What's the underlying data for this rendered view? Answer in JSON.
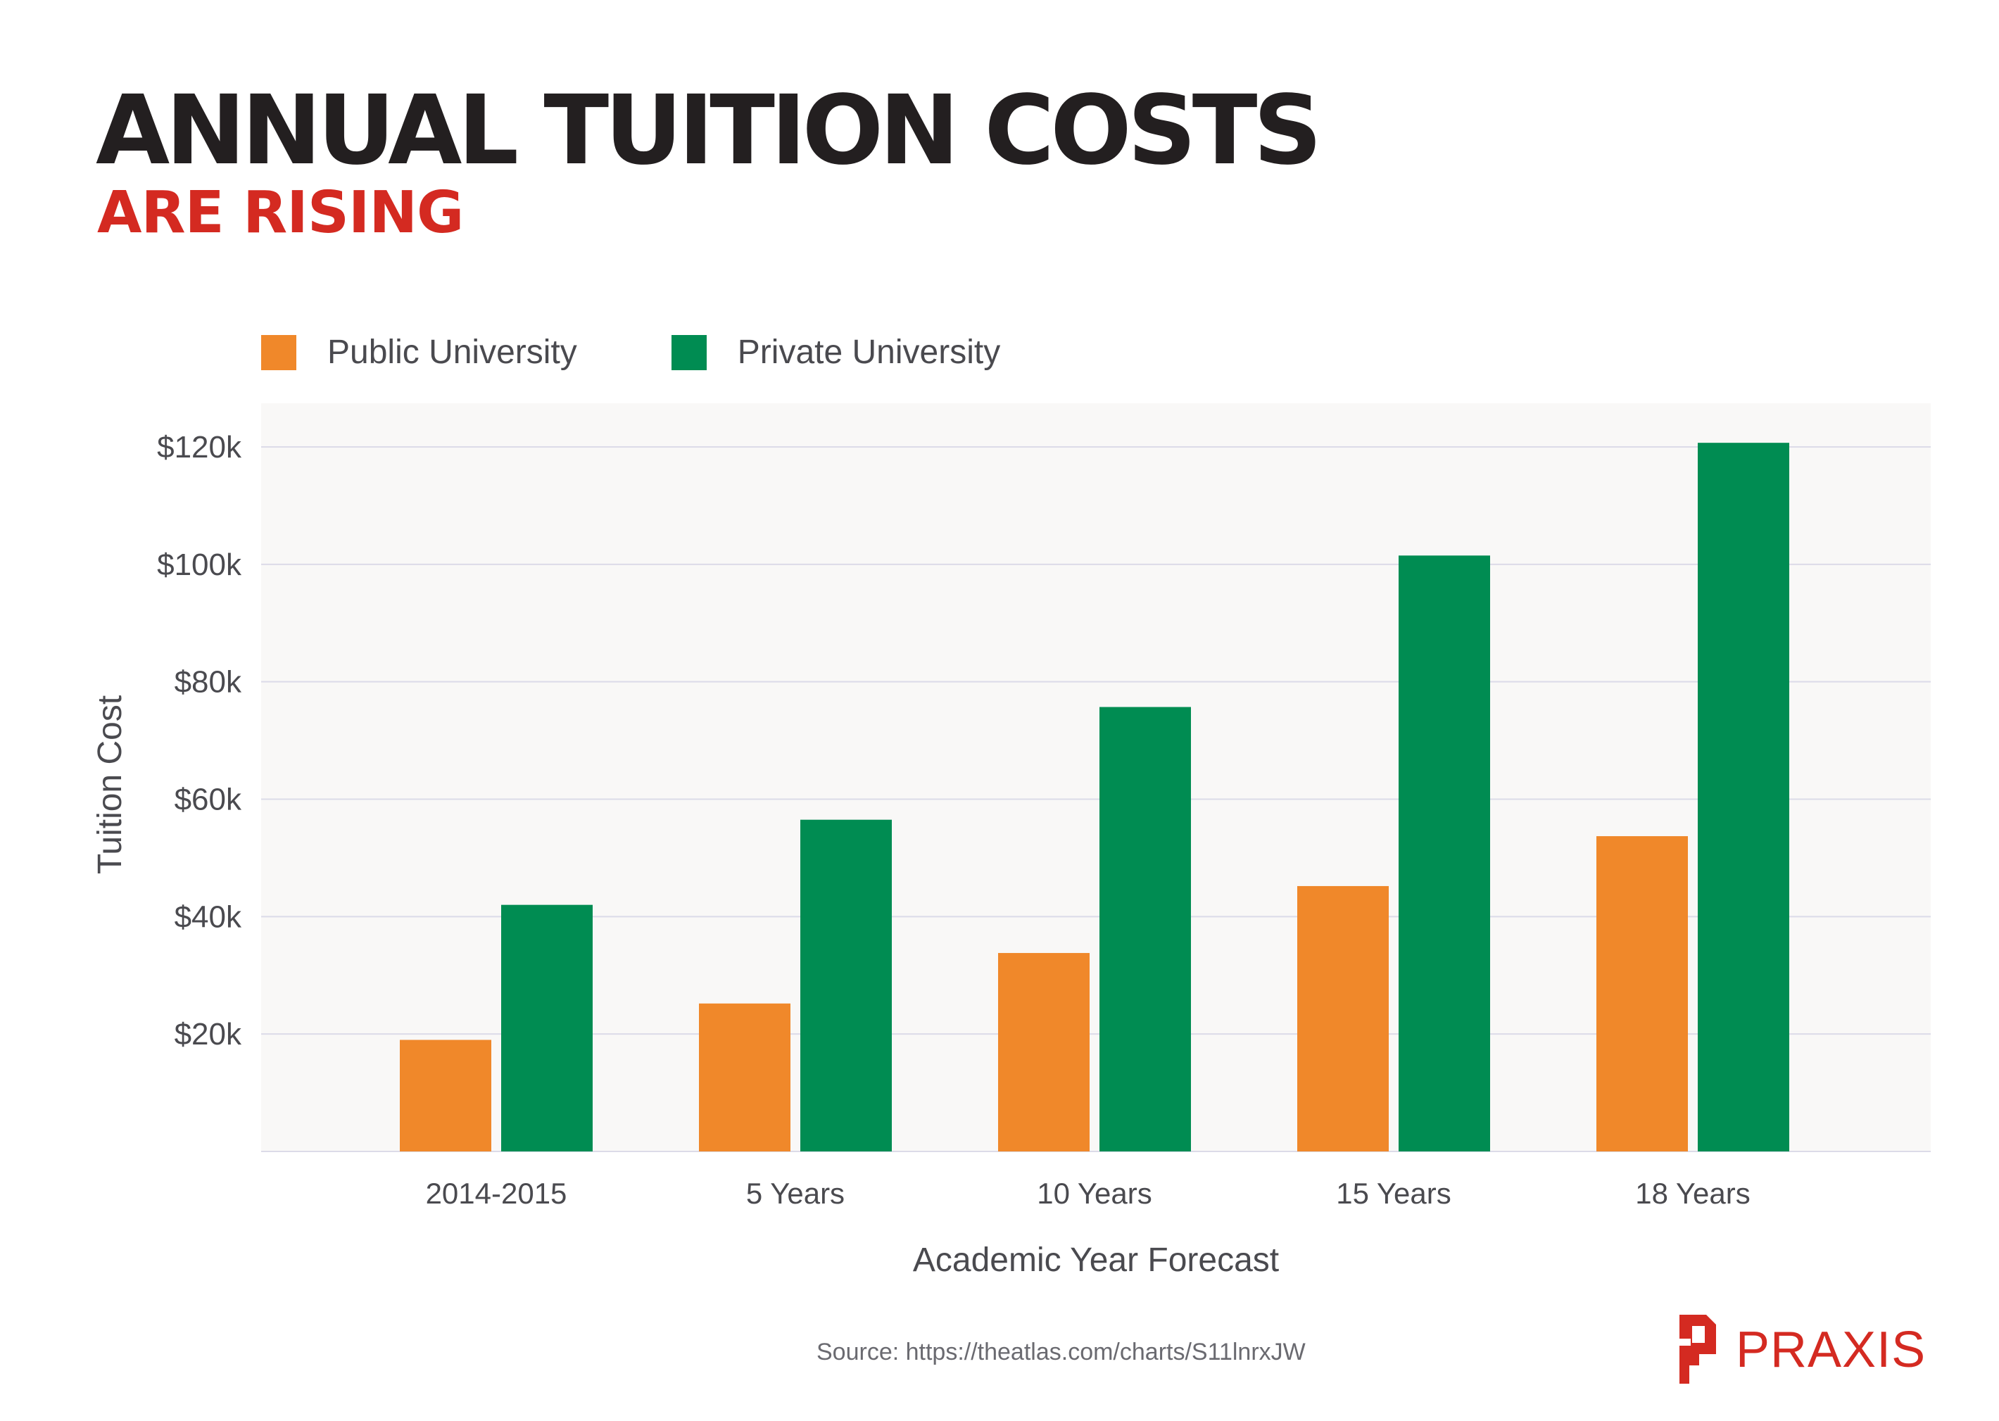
{
  "header": {
    "title": "ANNUAL TUITION COSTS",
    "subtitle": "ARE RISING"
  },
  "colors": {
    "public": "#f0882a",
    "private": "#008c52",
    "title": "#231f20",
    "accent_red": "#d42a21",
    "plot_background": "#f9f8f7",
    "gridline": "#dcdbe8"
  },
  "chart_data": {
    "type": "bar",
    "categories": [
      "2014-2015",
      "5 Years",
      "10 Years",
      "15 Years",
      "18 Years"
    ],
    "series": [
      {
        "name": "Public University",
        "values": [
          19000,
          25200,
          33800,
          45200,
          53700
        ]
      },
      {
        "name": "Private University",
        "values": [
          42000,
          56500,
          75700,
          101500,
          120700
        ]
      }
    ],
    "xlabel": "Academic Year Forecast",
    "ylabel": "Tuition Cost",
    "ylim": [
      0,
      120000
    ],
    "yticks": [
      {
        "value": 20000,
        "label": "$20k"
      },
      {
        "value": 40000,
        "label": "$40k"
      },
      {
        "value": 60000,
        "label": "$60k"
      },
      {
        "value": 80000,
        "label": "$80k"
      },
      {
        "value": 100000,
        "label": "$100k"
      },
      {
        "value": 120000,
        "label": "$120k"
      }
    ],
    "grid": true,
    "legend": "top-left"
  },
  "footer": {
    "source": "Source: https://theatlas.com/charts/S11lnrxJW",
    "brand": "PRAXIS",
    "brand_icon": "praxis-logo-icon"
  }
}
